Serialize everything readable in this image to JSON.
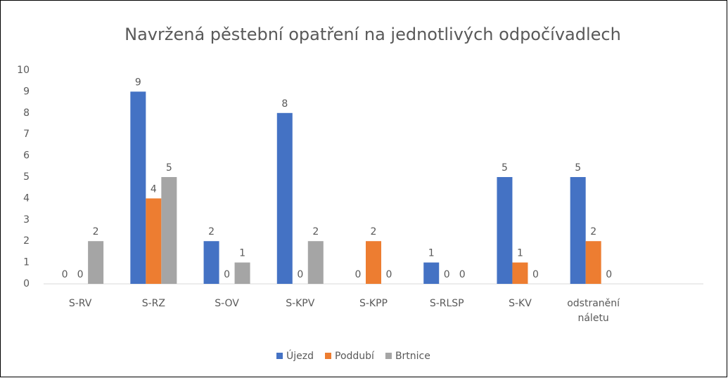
{
  "chart_data": {
    "type": "bar",
    "title": "Navržená pěstební opatření na jednotlivých odpočívadlech",
    "categories": [
      "S-RV",
      "S-RZ",
      "S-OV",
      "S-KPV",
      "S-KPP",
      "S-RLSP",
      "S-KV",
      "odstranění náletu",
      null
    ],
    "series": [
      {
        "name": "Újezd",
        "color": "#4472c4",
        "values": [
          0,
          9,
          2,
          8,
          0,
          1,
          5,
          5,
          null
        ]
      },
      {
        "name": "Poddubí",
        "color": "#ed7d31",
        "values": [
          0,
          4,
          0,
          0,
          2,
          0,
          1,
          2,
          null
        ]
      },
      {
        "name": "Brtnice",
        "color": "#a5a5a5",
        "values": [
          2,
          5,
          1,
          2,
          0,
          0,
          0,
          0,
          null
        ]
      }
    ],
    "ylim": [
      0,
      10
    ],
    "yticks": [
      0,
      1,
      2,
      3,
      4,
      5,
      6,
      7,
      8,
      9,
      10
    ],
    "grid": false,
    "legend": "bottom"
  }
}
